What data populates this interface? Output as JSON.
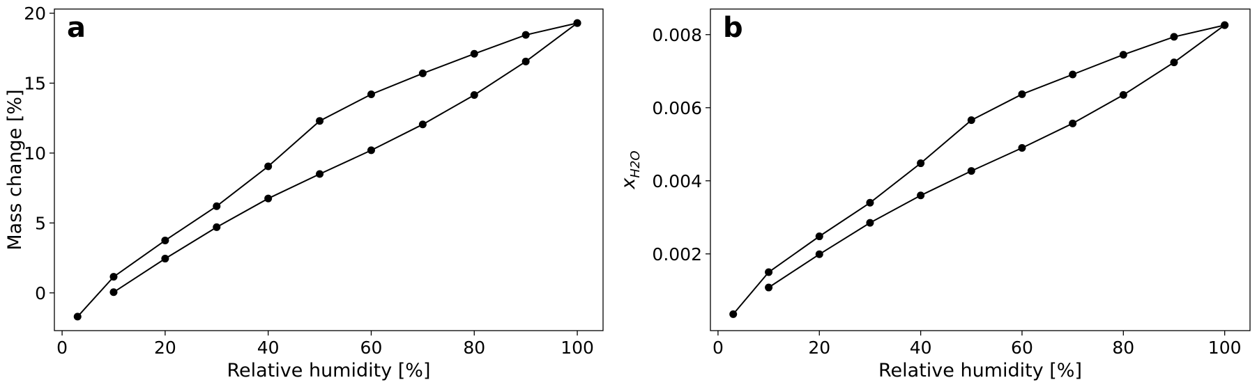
{
  "chart_data": [
    {
      "panel": "a",
      "type": "line",
      "title": "",
      "xlabel": "Relative humidity [%]",
      "ylabel": "Mass change [%]",
      "xlim": [
        -1.5,
        105.0
      ],
      "ylim": [
        -2.7,
        20.3
      ],
      "xticks": [
        0,
        20,
        40,
        60,
        80,
        100
      ],
      "yticks": [
        0,
        5,
        10,
        15,
        20
      ],
      "grid": false,
      "marker": "circle",
      "line_color": "#000000",
      "series": [
        {
          "x": [
            3,
            10,
            20,
            30,
            40,
            50,
            60,
            70,
            80,
            90,
            100
          ],
          "y": [
            -1.7,
            1.15,
            3.75,
            6.2,
            9.05,
            12.3,
            14.2,
            15.7,
            17.1,
            18.45,
            19.3
          ]
        },
        {
          "x": [
            10,
            20,
            30,
            40,
            50,
            60,
            70,
            80,
            90,
            100
          ],
          "y": [
            0.05,
            2.45,
            4.7,
            6.75,
            8.5,
            10.2,
            12.05,
            14.15,
            16.55,
            19.3
          ]
        }
      ]
    },
    {
      "panel": "b",
      "type": "line",
      "title": "",
      "xlabel": "Relative humidity [%]",
      "ylabel": "x_{H2O}",
      "ylabel_main": "x",
      "ylabel_sub": "H2O",
      "xlim": [
        -1.5,
        105.0
      ],
      "ylim": [
        -0.0001,
        0.0087
      ],
      "xticks": [
        0,
        20,
        40,
        60,
        80,
        100
      ],
      "yticks": [
        0.002,
        0.004,
        0.006,
        0.008
      ],
      "ytick_labels": [
        "0.002",
        "0.004",
        "0.006",
        "0.008"
      ],
      "grid": false,
      "marker": "circle",
      "line_color": "#000000",
      "series": [
        {
          "x": [
            3,
            10,
            20,
            30,
            40,
            50,
            60,
            70,
            80,
            90,
            100
          ],
          "y": [
            0.00035,
            0.0015,
            0.00248,
            0.0034,
            0.00448,
            0.00566,
            0.00637,
            0.00691,
            0.00745,
            0.00794,
            0.00826
          ]
        },
        {
          "x": [
            10,
            20,
            30,
            40,
            50,
            60,
            70,
            80,
            90,
            100
          ],
          "y": [
            0.00108,
            0.00199,
            0.00285,
            0.0036,
            0.00427,
            0.0049,
            0.00557,
            0.00635,
            0.00724,
            0.00826
          ]
        }
      ]
    }
  ]
}
